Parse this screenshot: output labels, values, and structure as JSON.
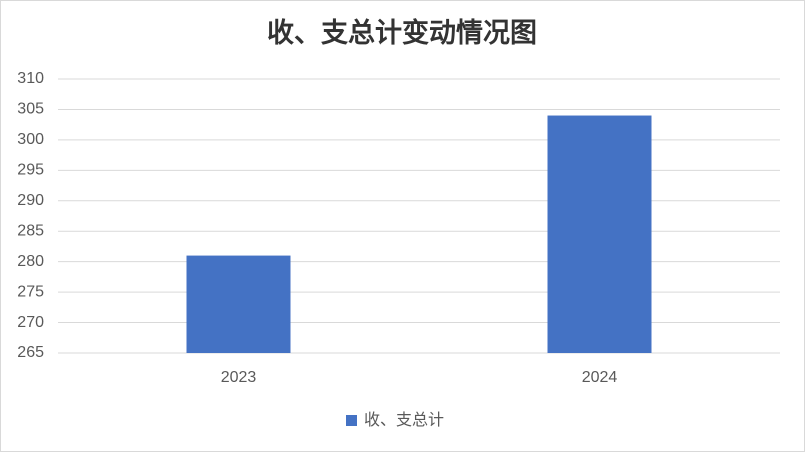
{
  "chart_data": {
    "type": "bar",
    "title": "收、支总计变动情况图",
    "categories": [
      "2023",
      "2024"
    ],
    "series": [
      {
        "name": "收、支总计",
        "color": "#4472c4",
        "values": [
          281,
          304
        ]
      }
    ],
    "ylim": [
      265,
      310
    ],
    "yticks": [
      265,
      270,
      275,
      280,
      285,
      290,
      295,
      300,
      305,
      310
    ],
    "grid": true,
    "legend": "bottom"
  }
}
